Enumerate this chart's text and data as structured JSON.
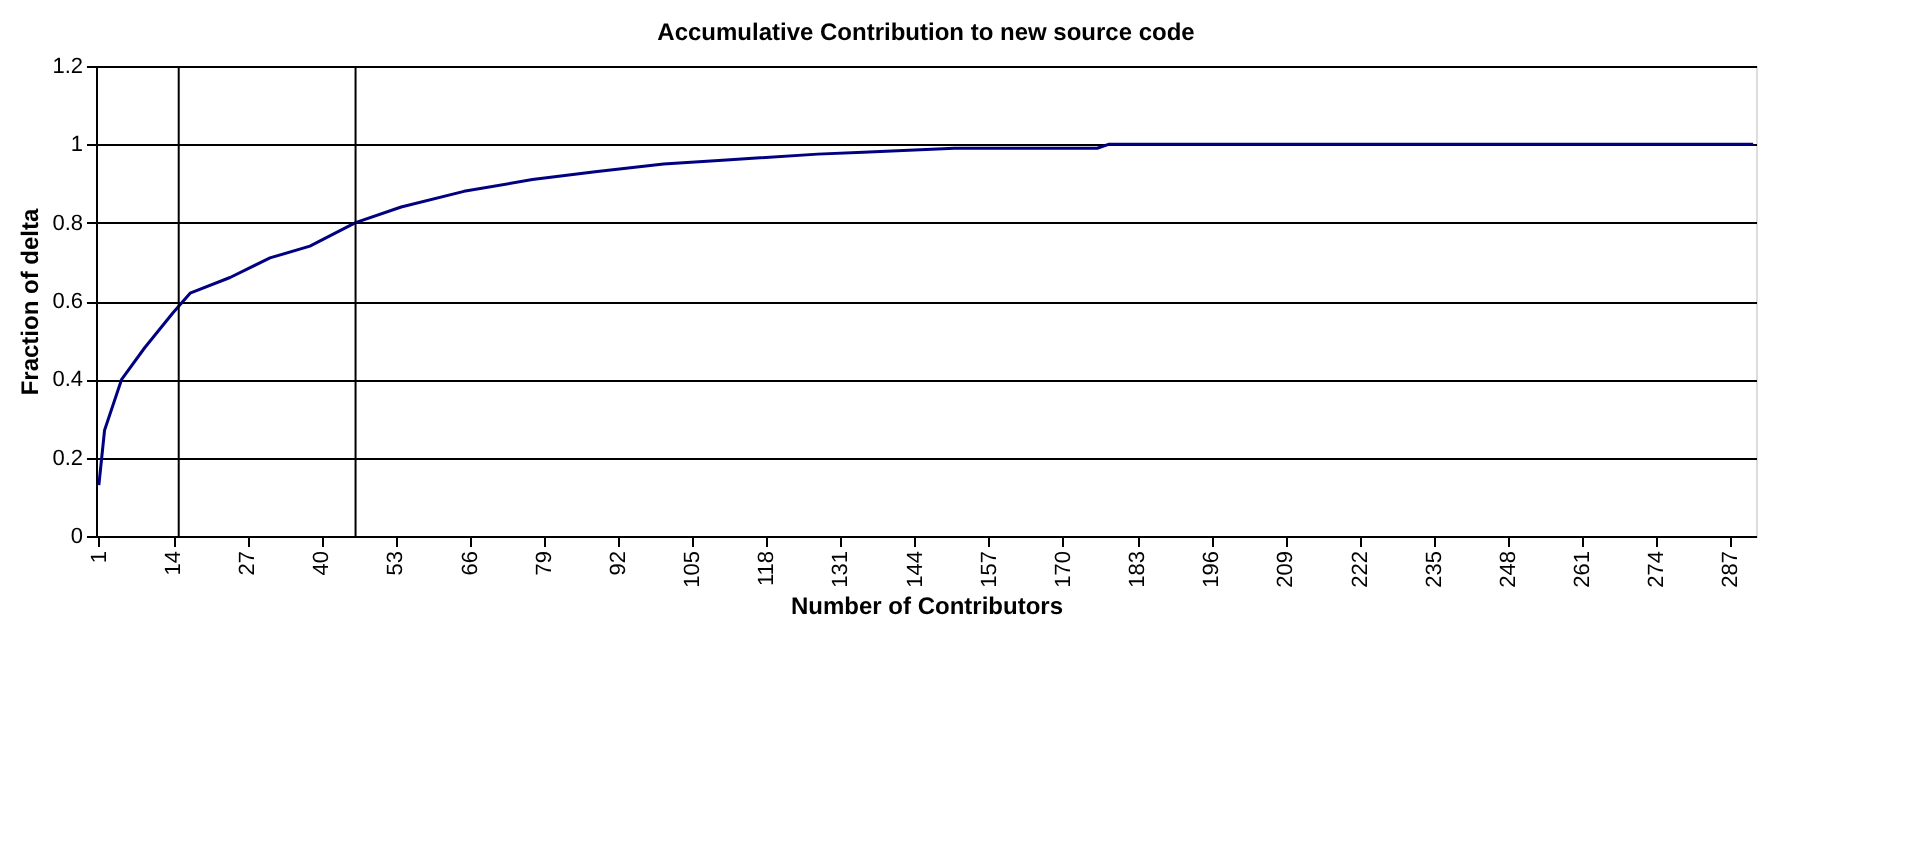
{
  "chart_data": {
    "type": "line",
    "title": "Accumulative Contribution to new source code",
    "xlabel": "Number of Contributors",
    "ylabel": "Fraction of delta",
    "x": [
      1,
      2,
      5,
      9,
      14,
      17,
      24,
      31,
      38,
      46,
      54,
      65,
      77,
      88,
      100,
      111,
      127,
      135,
      151,
      176,
      178,
      291
    ],
    "series": [
      {
        "color": "#000080",
        "values": [
          0.13,
          0.27,
          0.4,
          0.48,
          0.57,
          0.62,
          0.66,
          0.71,
          0.74,
          0.8,
          0.84,
          0.88,
          0.91,
          0.93,
          0.95,
          0.96,
          0.975,
          0.98,
          0.99,
          0.99,
          1.0,
          1.0
        ]
      }
    ],
    "xlim": [
      0.5,
      291.5
    ],
    "xticks": [
      1,
      14,
      27,
      40,
      53,
      66,
      79,
      92,
      105,
      118,
      131,
      144,
      157,
      170,
      183,
      196,
      209,
      222,
      235,
      248,
      261,
      274,
      287
    ],
    "ylim": [
      0,
      1.2
    ],
    "yticks": [
      0,
      0.2,
      0.4,
      0.6,
      0.8,
      1,
      1.2
    ],
    "grid": "y",
    "marker": "none",
    "line_style": "solid",
    "ref_lines": [
      {
        "axis": "x",
        "value": 15,
        "color": "#000000"
      },
      {
        "axis": "x",
        "value": 46,
        "color": "#000000"
      }
    ]
  }
}
